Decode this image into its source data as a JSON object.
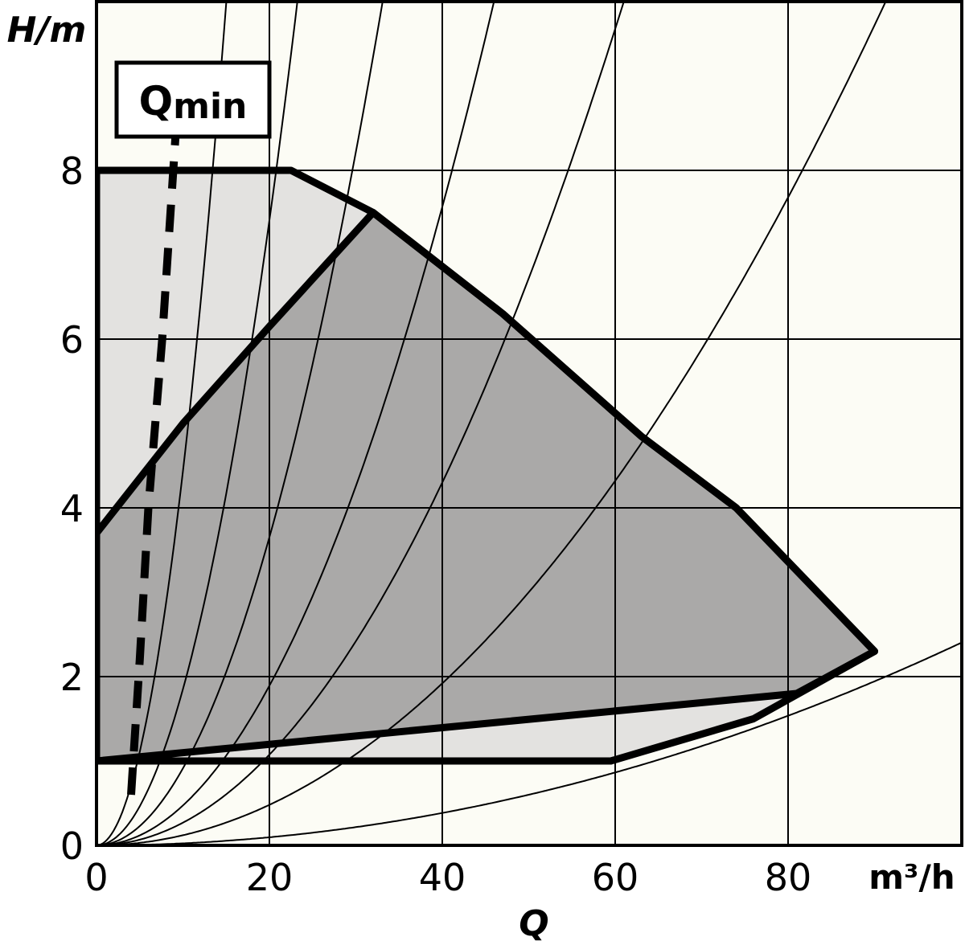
{
  "chart_data": {
    "type": "area",
    "title": "",
    "ylabel": "H/m",
    "xlabel": "Q",
    "xunit": "m³/h",
    "xlim": [
      0,
      100
    ],
    "ylim": [
      0,
      10
    ],
    "grid": true,
    "x_ticks": [
      "0",
      "20",
      "40",
      "60",
      "80"
    ],
    "y_ticks": [
      "0",
      "2",
      "4",
      "6",
      "8"
    ],
    "annotation": {
      "label": "Qmin",
      "label_main": "Q",
      "label_sub": "min"
    },
    "regions": [
      {
        "name": "max-operating-range",
        "fill": "#e3e2e0",
        "points": [
          [
            0,
            1.0
          ],
          [
            0,
            8.0
          ],
          [
            22.5,
            8.0
          ],
          [
            32,
            7.5
          ],
          [
            47,
            6.3
          ],
          [
            63,
            4.85
          ],
          [
            74,
            4.0
          ],
          [
            90,
            2.3
          ],
          [
            76,
            1.5
          ],
          [
            59.5,
            1.0
          ]
        ]
      },
      {
        "name": "control-range",
        "fill": "#aaa9a8",
        "points": [
          [
            0,
            1.0
          ],
          [
            0,
            3.7
          ],
          [
            10,
            5.0
          ],
          [
            20,
            6.15
          ],
          [
            32,
            7.5
          ],
          [
            47,
            6.3
          ],
          [
            63,
            4.85
          ],
          [
            74,
            4.0
          ],
          [
            90,
            2.3
          ],
          [
            81,
            1.8
          ]
        ]
      }
    ],
    "qmin_line": [
      [
        4,
        0.6
      ],
      [
        5,
        2.2
      ],
      [
        6,
        4.0
      ],
      [
        7.6,
        6.0
      ],
      [
        9.2,
        8.5
      ]
    ],
    "system_curves": [
      {
        "k": 0.04436
      },
      {
        "k": 0.01852
      },
      {
        "k": 0.00913
      },
      {
        "k": 0.00473
      },
      {
        "k": 0.002688
      },
      {
        "k": 0.0012
      },
      {
        "k": 0.00024
      }
    ],
    "colors": {
      "background": "#fcfcf5",
      "max_range_fill": "#e3e2e0",
      "control_range_fill": "#aaa9a8",
      "lines": "#000000"
    }
  }
}
